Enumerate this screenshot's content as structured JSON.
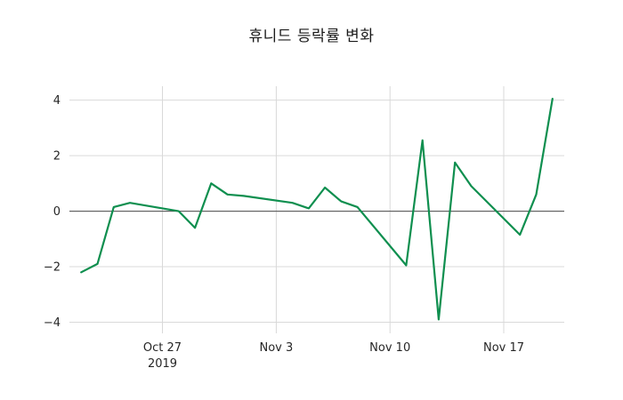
{
  "chart_data": {
    "type": "line",
    "title": "휴니드 등락률 변화",
    "xlabel": "",
    "ylabel": "",
    "grid": true,
    "legend": "none",
    "ylim": [
      -4.4,
      4.5
    ],
    "y_ticks": [
      -4,
      -2,
      0,
      2,
      4
    ],
    "x_ticks": [
      {
        "label": "Oct 27",
        "year": "2019",
        "date": "2019-10-27"
      },
      {
        "label": "Nov 3",
        "year": "",
        "date": "2019-11-03"
      },
      {
        "label": "Nov 10",
        "year": "",
        "date": "2019-11-10"
      },
      {
        "label": "Nov 17",
        "year": "",
        "date": "2019-11-17"
      }
    ],
    "colors": {
      "line": "#0f8f4f",
      "grid": "#d9d9d9",
      "zero_line": "#4d4d4d",
      "text": "#262626",
      "background": "#ffffff"
    },
    "series": [
      {
        "name": "등락률",
        "x": [
          "2019-10-22",
          "2019-10-23",
          "2019-10-24",
          "2019-10-25",
          "2019-10-28",
          "2019-10-29",
          "2019-10-30",
          "2019-10-31",
          "2019-11-01",
          "2019-11-04",
          "2019-11-05",
          "2019-11-06",
          "2019-11-07",
          "2019-11-08",
          "2019-11-11",
          "2019-11-12",
          "2019-11-13",
          "2019-11-14",
          "2019-11-15",
          "2019-11-18",
          "2019-11-19",
          "2019-11-20"
        ],
        "values": [
          -2.2,
          -1.9,
          0.15,
          0.3,
          0.0,
          -0.6,
          1.0,
          0.6,
          0.55,
          0.3,
          0.1,
          0.85,
          0.35,
          0.15,
          -1.95,
          2.55,
          -3.9,
          1.75,
          0.9,
          -0.85,
          0.6,
          4.05
        ]
      }
    ]
  }
}
